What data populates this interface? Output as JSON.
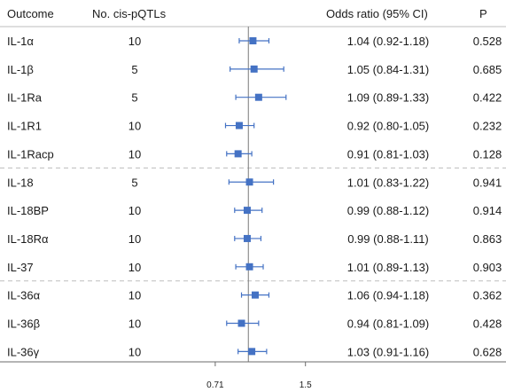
{
  "chart_data": {
    "type": "forest",
    "headers": {
      "outcome": "Outcome",
      "n_cis": "No. cis-pQTLs",
      "or_ci": "Odds ratio (95% CI)",
      "p": "P"
    },
    "reference_line": 1,
    "x_ticks": [
      "0.71",
      "1.5"
    ],
    "xlim": [
      0.61,
      1.58
    ],
    "marker_color": "#4472c4",
    "rows": [
      {
        "outcome": "IL-1α",
        "n": "10",
        "or": 1.04,
        "lo": 0.92,
        "hi": 1.18,
        "or_ci": "1.04 (0.92-1.18)",
        "p": "0.528"
      },
      {
        "outcome": "IL-1β",
        "n": "5",
        "or": 1.05,
        "lo": 0.84,
        "hi": 1.31,
        "or_ci": "1.05 (0.84-1.31)",
        "p": "0.685"
      },
      {
        "outcome": "IL-1Ra",
        "n": "5",
        "or": 1.09,
        "lo": 0.89,
        "hi": 1.33,
        "or_ci": "1.09 (0.89-1.33)",
        "p": "0.422"
      },
      {
        "outcome": "IL-1R1",
        "n": "10",
        "or": 0.92,
        "lo": 0.8,
        "hi": 1.05,
        "or_ci": "0.92 (0.80-1.05)",
        "p": "0.232"
      },
      {
        "outcome": "IL-1Racp",
        "n": "10",
        "or": 0.91,
        "lo": 0.81,
        "hi": 1.03,
        "or_ci": "0.91 (0.81-1.03)",
        "p": "0.128"
      },
      {
        "outcome": "IL-18",
        "n": "5",
        "or": 1.01,
        "lo": 0.83,
        "hi": 1.22,
        "or_ci": "1.01 (0.83-1.22)",
        "p": "0.941"
      },
      {
        "outcome": "IL-18BP",
        "n": "10",
        "or": 0.99,
        "lo": 0.88,
        "hi": 1.12,
        "or_ci": "0.99 (0.88-1.12)",
        "p": "0.914"
      },
      {
        "outcome": "IL-18Rα",
        "n": "10",
        "or": 0.99,
        "lo": 0.88,
        "hi": 1.11,
        "or_ci": "0.99 (0.88-1.11)",
        "p": "0.863"
      },
      {
        "outcome": "IL-37",
        "n": "10",
        "or": 1.01,
        "lo": 0.89,
        "hi": 1.13,
        "or_ci": "1.01 (0.89-1.13)",
        "p": "0.903"
      },
      {
        "outcome": "IL-36α",
        "n": "10",
        "or": 1.06,
        "lo": 0.94,
        "hi": 1.18,
        "or_ci": "1.06 (0.94-1.18)",
        "p": "0.362"
      },
      {
        "outcome": "IL-36β",
        "n": "10",
        "or": 0.94,
        "lo": 0.81,
        "hi": 1.09,
        "or_ci": "0.94 (0.81-1.09)",
        "p": "0.428"
      },
      {
        "outcome": "IL-36γ",
        "n": "10",
        "or": 1.03,
        "lo": 0.91,
        "hi": 1.16,
        "or_ci": "1.03 (0.91-1.16)",
        "p": "0.628"
      }
    ],
    "group_separators_after": [
      4,
      8
    ]
  }
}
